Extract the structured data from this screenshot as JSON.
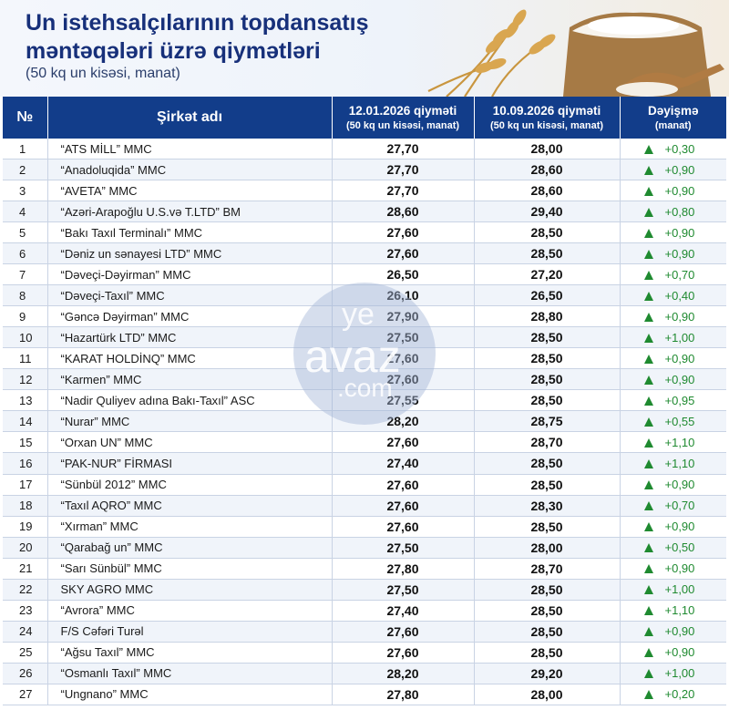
{
  "header": {
    "title_line1": "Un istehsalçılarının topdansatış",
    "title_line2": "məntəqələri üzrə qiymətləri",
    "subtitle": "(50 kq un kisəsi, manat)"
  },
  "table": {
    "columns": {
      "num": "№",
      "company": "Şirkət adı",
      "price1_title": "12.01.2026 qiyməti",
      "price1_sub": "(50 kq un kisəsi, manat)",
      "price2_title": "10.09.2026 qiyməti",
      "price2_sub": "(50 kq un kisəsi, manat)",
      "change_title": "Dəyişmə",
      "change_sub": "(manat)"
    },
    "rows": [
      {
        "n": "1",
        "name": "“ATS MİLL” MMC",
        "p1": "27,70",
        "p2": "28,00",
        "chg": "+0,30"
      },
      {
        "n": "2",
        "name": "“Anadoluqida” MMC",
        "p1": "27,70",
        "p2": "28,60",
        "chg": "+0,90"
      },
      {
        "n": "3",
        "name": "“AVETA” MMC",
        "p1": "27,70",
        "p2": "28,60",
        "chg": "+0,90"
      },
      {
        "n": "4",
        "name": "“Azəri-Arapoğlu U.S.və T.LTD” BM",
        "p1": "28,60",
        "p2": "29,40",
        "chg": "+0,80"
      },
      {
        "n": "5",
        "name": "“Bakı Taxıl Terminalı” MMC",
        "p1": "27,60",
        "p2": "28,50",
        "chg": "+0,90"
      },
      {
        "n": "6",
        "name": "“Dəniz un sənayesi LTD” MMC",
        "p1": "27,60",
        "p2": "28,50",
        "chg": "+0,90"
      },
      {
        "n": "7",
        "name": "“Dəveçi-Dəyirman” MMC",
        "p1": "26,50",
        "p2": "27,20",
        "chg": "+0,70"
      },
      {
        "n": "8",
        "name": "“Dəveçi-Taxıl” MMC",
        "p1": "26,10",
        "p2": "26,50",
        "chg": "+0,40"
      },
      {
        "n": "9",
        "name": "“Gəncə Dəyirman” MMC",
        "p1": "27,90",
        "p2": "28,80",
        "chg": "+0,90"
      },
      {
        "n": "10",
        "name": "“Hazartürk LTD” MMC",
        "p1": "27,50",
        "p2": "28,50",
        "chg": "+1,00"
      },
      {
        "n": "11",
        "name": "“KARAT HOLDİNQ” MMC",
        "p1": "27,60",
        "p2": "28,50",
        "chg": "+0,90"
      },
      {
        "n": "12",
        "name": "“Karmen” MMC",
        "p1": "27,60",
        "p2": "28,50",
        "chg": "+0,90"
      },
      {
        "n": "13",
        "name": "“Nadir Quliyev adına Bakı-Taxıl” ASC",
        "p1": "27,55",
        "p2": "28,50",
        "chg": "+0,95"
      },
      {
        "n": "14",
        "name": "“Nurar” MMC",
        "p1": "28,20",
        "p2": "28,75",
        "chg": "+0,55"
      },
      {
        "n": "15",
        "name": "“Orxan UN” MMC",
        "p1": "27,60",
        "p2": "28,70",
        "chg": "+1,10"
      },
      {
        "n": "16",
        "name": "“PAK-NUR” FİRMASI",
        "p1": "27,40",
        "p2": "28,50",
        "chg": "+1,10"
      },
      {
        "n": "17",
        "name": "“Sünbül 2012” MMC",
        "p1": "27,60",
        "p2": "28,50",
        "chg": "+0,90"
      },
      {
        "n": "18",
        "name": "“Taxıl AQRO” MMC",
        "p1": "27,60",
        "p2": "28,30",
        "chg": "+0,70"
      },
      {
        "n": "19",
        "name": "“Xırman” MMC",
        "p1": "27,60",
        "p2": "28,50",
        "chg": "+0,90"
      },
      {
        "n": "20",
        "name": "“Qarabağ un” MMC",
        "p1": "27,50",
        "p2": "28,00",
        "chg": "+0,50"
      },
      {
        "n": "21",
        "name": "“Sarı Sünbül” MMC",
        "p1": "27,80",
        "p2": "28,70",
        "chg": "+0,90"
      },
      {
        "n": "22",
        "name": "SKY AGRO MMC",
        "p1": "27,50",
        "p2": "28,50",
        "chg": "+1,00"
      },
      {
        "n": "23",
        "name": "“Avrora” MMC",
        "p1": "27,40",
        "p2": "28,50",
        "chg": "+1,10"
      },
      {
        "n": "24",
        "name": "F/S Cəfəri Turəl",
        "p1": "27,60",
        "p2": "28,50",
        "chg": "+0,90"
      },
      {
        "n": "25",
        "name": "“Ağsu Taxıl” MMC",
        "p1": "27,60",
        "p2": "28,50",
        "chg": "+0,90"
      },
      {
        "n": "26",
        "name": "“Osmanlı Taxıl” MMC",
        "p1": "28,20",
        "p2": "29,20",
        "chg": "+1,00"
      },
      {
        "n": "27",
        "name": "“Ungnano” MMC",
        "p1": "27,80",
        "p2": "28,00",
        "chg": "+0,20"
      }
    ]
  },
  "watermark": {
    "line1": "ye",
    "line2": "avaz",
    "line3": ".com"
  },
  "colors": {
    "header_bg": "#123d8a",
    "title": "#17307a",
    "change_up": "#1f8a30",
    "row_alt": "#f0f4fa"
  },
  "icons": {
    "change_indicator": "triangle-up-icon",
    "decor": "wheat-flour-sack-icon"
  }
}
